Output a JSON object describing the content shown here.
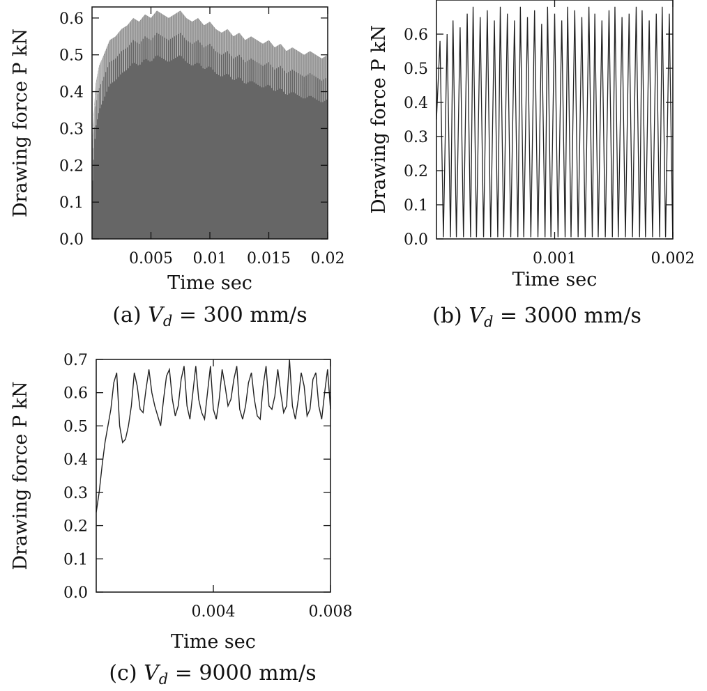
{
  "chart_data": [
    {
      "id": "a",
      "type": "area",
      "caption_prefix": "(a)",
      "caption_var": "V",
      "caption_sub": "d",
      "caption_value": " = 300 mm/s",
      "xlabel": "Time   sec",
      "ylabel": "Drawing force  P   kN",
      "xlim": [
        0,
        0.02
      ],
      "ylim": [
        0,
        0.63
      ],
      "xticks": [
        0.005,
        0.01,
        0.015,
        0.02
      ],
      "xtick_labels": [
        "0.005",
        "0.01",
        "0.015",
        "0.02"
      ],
      "yticks": [
        0.0,
        0.1,
        0.2,
        0.3,
        0.4,
        0.5,
        0.6
      ],
      "ytick_labels": [
        "0.0",
        "0.1",
        "0.2",
        "0.3",
        "0.4",
        "0.5",
        "0.6"
      ],
      "fill_color": "#666666",
      "series": [
        {
          "x": [
            0.0,
            0.0003,
            0.0006,
            0.001,
            0.0015,
            0.002,
            0.0025,
            0.003,
            0.0035,
            0.004,
            0.0045,
            0.005,
            0.0055,
            0.006,
            0.0065,
            0.007,
            0.0075,
            0.008,
            0.0085,
            0.009,
            0.0095,
            0.01,
            0.0105,
            0.011,
            0.0115,
            0.012,
            0.0125,
            0.013,
            0.0135,
            0.014,
            0.0145,
            0.015,
            0.0155,
            0.016,
            0.0165,
            0.017,
            0.0175,
            0.018,
            0.0185,
            0.019,
            0.0195,
            0.02
          ],
          "y": [
            0.25,
            0.42,
            0.47,
            0.5,
            0.54,
            0.55,
            0.57,
            0.58,
            0.6,
            0.59,
            0.61,
            0.6,
            0.62,
            0.61,
            0.6,
            0.61,
            0.62,
            0.6,
            0.59,
            0.6,
            0.58,
            0.59,
            0.57,
            0.56,
            0.57,
            0.55,
            0.56,
            0.54,
            0.55,
            0.54,
            0.53,
            0.54,
            0.52,
            0.53,
            0.51,
            0.52,
            0.51,
            0.5,
            0.51,
            0.5,
            0.49,
            0.5
          ]
        }
      ]
    },
    {
      "id": "b",
      "type": "line",
      "caption_prefix": "(b)",
      "caption_var": "V",
      "caption_sub": "d",
      "caption_value": " = 3000 mm/s",
      "xlabel": "Time   sec",
      "ylabel": "Drawing force  P   kN",
      "xlim": [
        0,
        0.002
      ],
      "ylim": [
        0,
        0.7
      ],
      "xticks": [
        0.001,
        0.002
      ],
      "xtick_labels": [
        "0.001",
        "0.002"
      ],
      "yticks": [
        0.0,
        0.1,
        0.2,
        0.3,
        0.4,
        0.5,
        0.6
      ],
      "ytick_labels": [
        "0.0",
        "0.1",
        "0.2",
        "0.3",
        "0.4",
        "0.5",
        "0.6"
      ],
      "oscillation": {
        "cycles": 35,
        "x_start": 0.0,
        "x_end": 0.002,
        "y_min": 0.0
      },
      "series": [
        {
          "x": [
            3e-05,
            9e-05,
            0.00014,
            0.0002,
            0.00026,
            0.00031,
            0.00037,
            0.00043,
            0.00049,
            0.00054,
            0.0006,
            0.00066,
            0.00071,
            0.00077,
            0.00083,
            0.00089,
            0.00094,
            0.001,
            0.00106,
            0.00111,
            0.00117,
            0.00123,
            0.00129,
            0.00134,
            0.0014,
            0.00146,
            0.00151,
            0.00157,
            0.00163,
            0.00169,
            0.00174,
            0.0018,
            0.00186,
            0.00191,
            0.00197
          ],
          "y": [
            0.58,
            0.6,
            0.64,
            0.62,
            0.66,
            0.68,
            0.65,
            0.67,
            0.64,
            0.68,
            0.66,
            0.64,
            0.68,
            0.65,
            0.67,
            0.63,
            0.68,
            0.66,
            0.64,
            0.68,
            0.67,
            0.65,
            0.68,
            0.66,
            0.64,
            0.67,
            0.68,
            0.65,
            0.66,
            0.68,
            0.67,
            0.64,
            0.66,
            0.68,
            0.66
          ]
        }
      ]
    },
    {
      "id": "c",
      "type": "line",
      "caption_prefix": "(c)",
      "caption_var": "V",
      "caption_sub": "d",
      "caption_value": " = 9000 mm/s",
      "xlabel": "Time   sec",
      "ylabel": "Drawing force  P   kN",
      "xlim": [
        0,
        0.008
      ],
      "ylim": [
        0,
        0.7
      ],
      "xticks": [
        0.004,
        0.008
      ],
      "xtick_labels": [
        "0.004",
        "0.008"
      ],
      "yticks": [
        0.0,
        0.1,
        0.2,
        0.3,
        0.4,
        0.5,
        0.6,
        0.7
      ],
      "ytick_labels": [
        "0.0",
        "0.1",
        "0.2",
        "0.3",
        "0.4",
        "0.5",
        "0.6",
        "0.7"
      ],
      "series": [
        {
          "x": [
            0.0,
            0.0001,
            0.0002,
            0.0003,
            0.0004,
            0.0005,
            0.0006,
            0.0007,
            0.0008,
            0.0009,
            0.001,
            0.0011,
            0.0012,
            0.0013,
            0.0014,
            0.0015,
            0.0016,
            0.0017,
            0.0018,
            0.0019,
            0.002,
            0.0021,
            0.0022,
            0.0023,
            0.0024,
            0.0025,
            0.0026,
            0.0027,
            0.0028,
            0.0029,
            0.003,
            0.0031,
            0.0032,
            0.0033,
            0.0034,
            0.0035,
            0.0036,
            0.0037,
            0.0038,
            0.0039,
            0.004,
            0.0041,
            0.0042,
            0.0043,
            0.0044,
            0.0045,
            0.0046,
            0.0047,
            0.0048,
            0.0049,
            0.005,
            0.0051,
            0.0052,
            0.0053,
            0.0054,
            0.0055,
            0.0056,
            0.0057,
            0.0058,
            0.0059,
            0.006,
            0.0061,
            0.0062,
            0.0063,
            0.0064,
            0.0065,
            0.0066,
            0.0067,
            0.0068,
            0.0069,
            0.007,
            0.0071,
            0.0072,
            0.0073,
            0.0074,
            0.0075,
            0.0076,
            0.0077,
            0.0078,
            0.0079,
            0.008
          ],
          "y": [
            0.24,
            0.3,
            0.38,
            0.45,
            0.5,
            0.55,
            0.63,
            0.66,
            0.5,
            0.45,
            0.46,
            0.5,
            0.56,
            0.66,
            0.62,
            0.55,
            0.54,
            0.61,
            0.67,
            0.6,
            0.56,
            0.53,
            0.5,
            0.58,
            0.65,
            0.67,
            0.58,
            0.53,
            0.56,
            0.64,
            0.68,
            0.56,
            0.52,
            0.6,
            0.68,
            0.58,
            0.54,
            0.52,
            0.6,
            0.68,
            0.55,
            0.52,
            0.58,
            0.67,
            0.62,
            0.56,
            0.58,
            0.64,
            0.68,
            0.55,
            0.52,
            0.56,
            0.63,
            0.66,
            0.58,
            0.53,
            0.52,
            0.62,
            0.68,
            0.56,
            0.55,
            0.59,
            0.67,
            0.6,
            0.54,
            0.56,
            0.7,
            0.56,
            0.52,
            0.58,
            0.66,
            0.62,
            0.53,
            0.55,
            0.64,
            0.66,
            0.56,
            0.52,
            0.6,
            0.67,
            0.55
          ]
        }
      ]
    }
  ]
}
